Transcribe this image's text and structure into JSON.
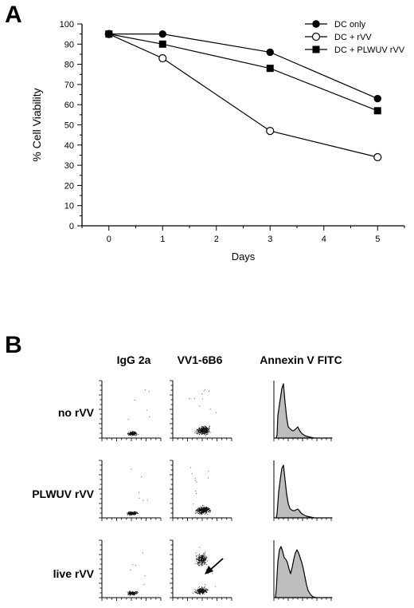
{
  "panel_a": {
    "letter": "A",
    "chart_data": {
      "type": "line",
      "xlabel": "Days",
      "ylabel": "% Cell Viability",
      "xlim": [
        -0.5,
        5.5
      ],
      "ylim": [
        0,
        100
      ],
      "x_ticks": [
        0,
        1,
        2,
        3,
        4,
        5
      ],
      "y_ticks": [
        0,
        10,
        20,
        30,
        40,
        50,
        60,
        70,
        80,
        90,
        100
      ],
      "x": [
        0,
        1,
        3,
        5
      ],
      "legend_position": "top-right",
      "grid": false,
      "series": [
        {
          "name": "DC only",
          "marker": "filled-circle",
          "values": [
            95,
            95,
            86,
            63
          ]
        },
        {
          "name": "DC + rVV",
          "marker": "open-circle",
          "values": [
            95,
            83,
            47,
            34
          ]
        },
        {
          "name": "DC + PLWUV rVV",
          "marker": "filled-square",
          "values": [
            95,
            90,
            78,
            57
          ]
        }
      ]
    }
  },
  "panel_b": {
    "letter": "B",
    "columns": [
      "IgG 2a",
      "VV1-6B6",
      "Annexin V FITC"
    ],
    "rows": [
      "no rVV",
      "PLWUV rVV",
      "live rVV"
    ]
  }
}
